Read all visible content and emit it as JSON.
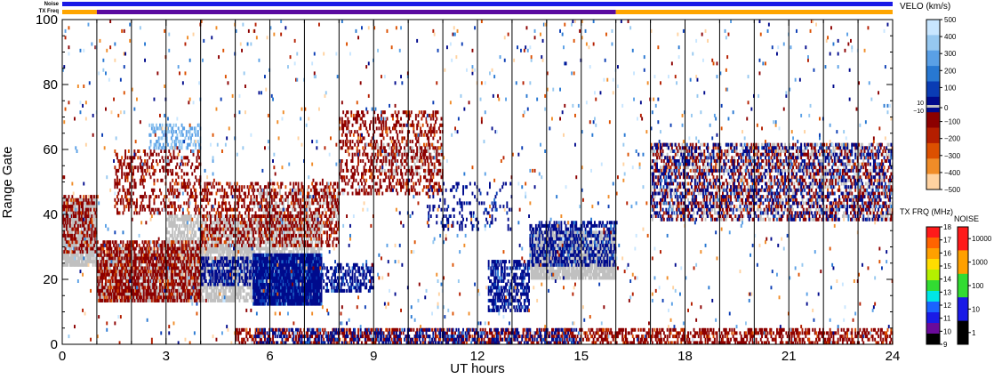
{
  "chart_data": {
    "type": "heatmap",
    "title": "",
    "xlabel": "UT hours",
    "ylabel": "Range Gate",
    "xlim": [
      0,
      24
    ],
    "ylim": [
      0,
      100
    ],
    "x_ticks": [
      "0",
      "3",
      "6",
      "9",
      "12",
      "15",
      "18",
      "21",
      "24"
    ],
    "y_ticks": [
      "0",
      "20",
      "40",
      "60",
      "80",
      "100"
    ],
    "scan_boundaries_hours": [
      1,
      2,
      3,
      4,
      5,
      6,
      7,
      8,
      9,
      10,
      11,
      12,
      13,
      14,
      15,
      16,
      17,
      18,
      19,
      20,
      21,
      22,
      23
    ],
    "status_bars": {
      "noise_label": "Noise",
      "txfreq_label": "TX Freq",
      "noise_color": "#1a1ae6",
      "txfreq_segments": [
        {
          "start": 0,
          "end": 1,
          "color": "#ffa500"
        },
        {
          "start": 1,
          "end": 16,
          "color": "#5a0aa0"
        },
        {
          "start": 16,
          "end": 24,
          "color": "#ffa500"
        }
      ]
    },
    "velocity_colorbar": {
      "title": "VELO (km/s)",
      "tick_labels": [
        "500",
        "400",
        "300",
        "200",
        "100",
        "0",
        "−100",
        "−200",
        "−300",
        "−400",
        "−500"
      ],
      "ground_scatter_label_hi": "10",
      "ground_scatter_label_lo": "−10",
      "colors": [
        "#c8e6ff",
        "#96c8f0",
        "#5aa0e6",
        "#2878d2",
        "#0a3cb4",
        "#000a8c",
        "#8c0000",
        "#b41e00",
        "#dc5000",
        "#f08c28",
        "#ffd2a0"
      ]
    },
    "txfreq_colorbar": {
      "title": "TX FRQ (MHz)",
      "tick_labels": [
        "18",
        "17",
        "16",
        "15",
        "14",
        "13",
        "12",
        "11",
        "10",
        "9"
      ],
      "colors": [
        "#ff1a1a",
        "#ff6400",
        "#ffa000",
        "#ffdc00",
        "#b4f000",
        "#32dc32",
        "#00e6e6",
        "#1a64ff",
        "#1a1ae6",
        "#6a0a9a",
        "#000000"
      ]
    },
    "noise_colorbar": {
      "title": "NOISE",
      "tick_labels": [
        "10000",
        "1000",
        "100",
        "10",
        "1"
      ],
      "colors": [
        "#ff1a1a",
        "#ffa000",
        "#32dc32",
        "#1a1ae6",
        "#000000"
      ]
    },
    "regions": [
      {
        "kind": "ground",
        "t0": 0,
        "t1": 1,
        "r0": 24,
        "r1": 45,
        "density": 0.85
      },
      {
        "kind": "ground",
        "t0": 1,
        "t1": 5.5,
        "r0": 13,
        "r1": 30,
        "density": 0.7
      },
      {
        "kind": "ground",
        "t0": 3,
        "t1": 7.5,
        "r0": 28,
        "r1": 40,
        "density": 0.6
      },
      {
        "kind": "ground",
        "t0": 5.5,
        "t1": 8,
        "r0": 36,
        "r1": 48,
        "density": 0.35
      },
      {
        "kind": "ground",
        "t0": 13.5,
        "t1": 16,
        "r0": 20,
        "r1": 35,
        "density": 0.85
      },
      {
        "kind": "ground",
        "t0": 17,
        "t1": 24,
        "r0": 38,
        "r1": 62,
        "density": 0.25
      },
      {
        "kind": "ground",
        "t0": 9,
        "t1": 11,
        "r0": 52,
        "r1": 62,
        "density": 0.25
      },
      {
        "kind": "red",
        "t0": 0,
        "t1": 1,
        "r0": 28,
        "r1": 46,
        "density": 0.45
      },
      {
        "kind": "red",
        "t0": 1,
        "t1": 4,
        "r0": 13,
        "r1": 32,
        "density": 0.55
      },
      {
        "kind": "red",
        "t0": 1.5,
        "t1": 4,
        "r0": 40,
        "r1": 60,
        "density": 0.3
      },
      {
        "kind": "red",
        "t0": 4,
        "t1": 8,
        "r0": 30,
        "r1": 50,
        "density": 0.35
      },
      {
        "kind": "red",
        "t0": 8,
        "t1": 11,
        "r0": 46,
        "r1": 72,
        "density": 0.3
      },
      {
        "kind": "red",
        "t0": 5,
        "t1": 24,
        "r0": 0,
        "r1": 5,
        "density": 0.45
      },
      {
        "kind": "red",
        "t0": 17,
        "t1": 24,
        "r0": 38,
        "r1": 62,
        "density": 0.25
      },
      {
        "kind": "blue",
        "t0": 5.5,
        "t1": 7.5,
        "r0": 12,
        "r1": 28,
        "density": 0.97
      },
      {
        "kind": "blue",
        "t0": 4,
        "t1": 5.5,
        "r0": 18,
        "r1": 27,
        "density": 0.55
      },
      {
        "kind": "blue",
        "t0": 7.5,
        "t1": 9,
        "r0": 16,
        "r1": 25,
        "density": 0.45
      },
      {
        "kind": "blue",
        "t0": 12.3,
        "t1": 13.5,
        "r0": 10,
        "r1": 26,
        "density": 0.55
      },
      {
        "kind": "blue",
        "t0": 13.5,
        "t1": 16,
        "r0": 24,
        "r1": 38,
        "density": 0.45
      },
      {
        "kind": "blue",
        "t0": 5.5,
        "t1": 15,
        "r0": 0,
        "r1": 5,
        "density": 0.3
      },
      {
        "kind": "blue",
        "t0": 10.5,
        "t1": 13,
        "r0": 35,
        "r1": 50,
        "density": 0.15
      },
      {
        "kind": "blue",
        "t0": 17,
        "t1": 24,
        "r0": 38,
        "r1": 62,
        "density": 0.2
      },
      {
        "kind": "cyan",
        "t0": 2.5,
        "t1": 4,
        "r0": 60,
        "r1": 68,
        "density": 0.35
      },
      {
        "kind": "sparse",
        "t0": 0,
        "t1": 24,
        "r0": 0,
        "r1": 100,
        "density": 0.02
      }
    ]
  }
}
